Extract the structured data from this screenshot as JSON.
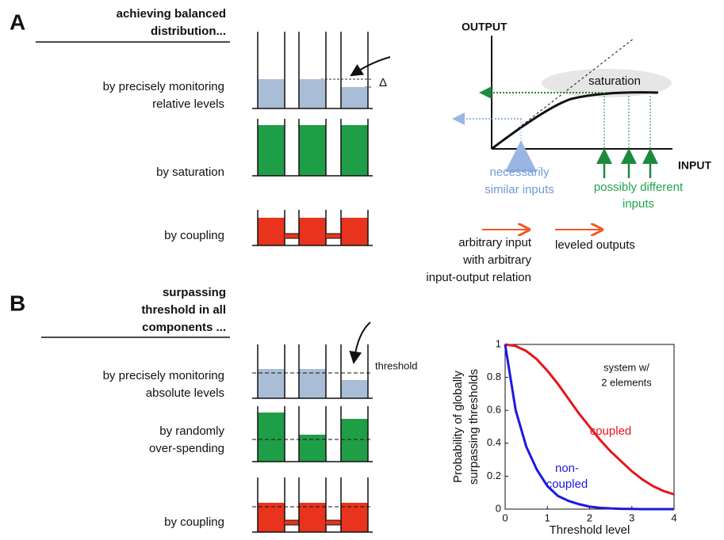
{
  "panel_a": {
    "label": "A",
    "heading": [
      "achieving balanced",
      "distribution..."
    ],
    "rows": [
      [
        "by precisely monitoring",
        "relative levels"
      ],
      [
        "by saturation"
      ],
      [
        "by coupling"
      ]
    ],
    "delta": "Δ",
    "diagram": {
      "y_axis": "OUTPUT",
      "x_axis": "INPUT",
      "saturation": "saturation",
      "similar": [
        "necessarily",
        "similar inputs"
      ],
      "different": [
        "possibly different",
        "inputs"
      ],
      "arbitrary": [
        "arbitrary input",
        "with arbitrary",
        "input-output relation"
      ],
      "leveled": "leveled outputs"
    }
  },
  "panel_b": {
    "label": "B",
    "heading": [
      "surpassing",
      "threshold in all",
      "components ..."
    ],
    "rows": [
      [
        "by precisely monitoring",
        "absolute levels"
      ],
      [
        "by randomly",
        "over-spending"
      ],
      [
        "by coupling"
      ]
    ],
    "threshold": "threshold"
  },
  "chart_data": {
    "type": "line",
    "x_label": "Threshold level",
    "y_label": [
      "Probability of globally",
      "surpassing thresholds"
    ],
    "annotation": [
      "system w/",
      "2 elements"
    ],
    "x": [
      0,
      0.25,
      0.5,
      0.75,
      1,
      1.25,
      1.5,
      1.75,
      2,
      2.25,
      2.5,
      2.75,
      3,
      3.25,
      3.5,
      3.75,
      4
    ],
    "series": [
      {
        "name": [
          "coupled"
        ],
        "color": "#e8141c",
        "values": [
          1,
          0.99,
          0.96,
          0.91,
          0.84,
          0.76,
          0.67,
          0.58,
          0.5,
          0.42,
          0.35,
          0.29,
          0.23,
          0.18,
          0.14,
          0.11,
          0.09
        ]
      },
      {
        "name": [
          "non-",
          "coupled"
        ],
        "color": "#1a1ae0",
        "values": [
          1,
          0.6,
          0.38,
          0.24,
          0.14,
          0.08,
          0.05,
          0.03,
          0.015,
          0.008,
          0.004,
          0.002,
          0.001,
          0,
          0,
          0,
          0
        ]
      }
    ],
    "xlim": [
      0,
      4
    ],
    "ylim": [
      0,
      1
    ],
    "xticks": [
      0,
      1,
      2,
      3,
      4
    ],
    "yticks": [
      0,
      0.2,
      0.4,
      0.6,
      0.8,
      1
    ]
  }
}
